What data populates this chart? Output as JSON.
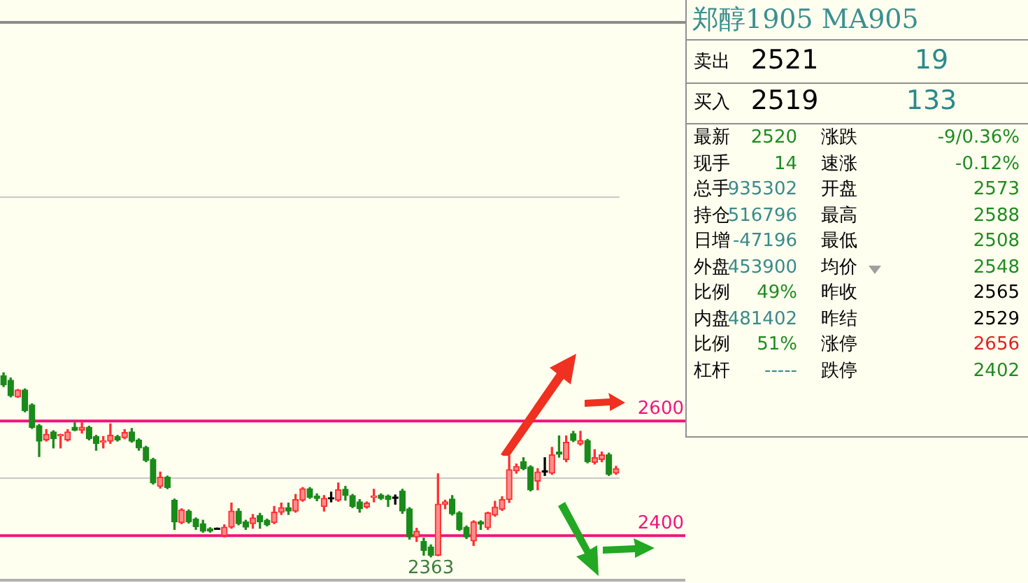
{
  "chart_data": [
    {
      "type": "candlestick",
      "categories": [
        null,
        null,
        null,
        null,
        null,
        null,
        null,
        null,
        null,
        null,
        null,
        null,
        null,
        null,
        null,
        null,
        null,
        null,
        null,
        null,
        null,
        null,
        null,
        null,
        null,
        null,
        null,
        null,
        null,
        null,
        null,
        null,
        null,
        null,
        null,
        null,
        null,
        null,
        null,
        null,
        null,
        null,
        null,
        null,
        null,
        null,
        null,
        null,
        null,
        null,
        null,
        null,
        null,
        null,
        null,
        null,
        null,
        null,
        null,
        null,
        null,
        null,
        null,
        null,
        null,
        null,
        null,
        null,
        null,
        null,
        null,
        null,
        null,
        null,
        null,
        null,
        null,
        null,
        null,
        null,
        null,
        null,
        null,
        null,
        null,
        null,
        null
      ],
      "ohlc": [
        [
          2679,
          2684,
          2660,
          2663
        ],
        [
          2671,
          2675,
          2642,
          2644
        ],
        [
          2642,
          2655,
          2641,
          2654
        ],
        [
          2654,
          2656,
          2616,
          2618
        ],
        [
          2628,
          2630,
          2587,
          2589
        ],
        [
          2592,
          2594,
          2538,
          2565
        ],
        [
          2567,
          2585,
          2565,
          2577
        ],
        [
          2581,
          2583,
          2553,
          2569
        ],
        [
          2574,
          2577,
          2553,
          2575
        ],
        [
          2567,
          2585,
          2565,
          2581
        ],
        [
          2589,
          2597,
          2583,
          2584
        ],
        [
          2584,
          2597,
          2579,
          2589
        ],
        [
          2589,
          2591,
          2567,
          2569
        ],
        [
          2573,
          2575,
          2549,
          2561
        ],
        [
          2563,
          2573,
          2553,
          2565
        ],
        [
          2565,
          2595,
          2561,
          2575
        ],
        [
          2573,
          2575,
          2565,
          2567
        ],
        [
          2571,
          2585,
          2569,
          2580
        ],
        [
          2581,
          2587,
          2563,
          2565
        ],
        [
          2567,
          2569,
          2549,
          2553
        ],
        [
          2554,
          2556,
          2529,
          2531
        ],
        [
          2533,
          2535,
          2490,
          2492
        ],
        [
          2486,
          2511,
          2483,
          2502
        ],
        [
          2502,
          2504,
          2482,
          2484
        ],
        [
          2462,
          2464,
          2411,
          2424
        ],
        [
          2423,
          2447,
          2421,
          2445
        ],
        [
          2443,
          2445,
          2422,
          2424
        ],
        [
          2429,
          2431,
          2411,
          2416
        ],
        [
          2421,
          2427,
          2406,
          2408
        ],
        [
          2412,
          2414,
          2406,
          2408
        ],
        [
          2411,
          2411,
          2411,
          2411
        ],
        [
          2400,
          2419,
          2398,
          2415
        ],
        [
          2415,
          2457,
          2413,
          2443
        ],
        [
          2443,
          2447,
          2419,
          2421
        ],
        [
          2424,
          2427,
          2411,
          2415
        ],
        [
          2421,
          2437,
          2413,
          2431
        ],
        [
          2435,
          2439,
          2413,
          2424
        ],
        [
          2427,
          2429,
          2417,
          2419
        ],
        [
          2423,
          2451,
          2421,
          2441
        ],
        [
          2441,
          2457,
          2437,
          2449
        ],
        [
          2449,
          2457,
          2437,
          2443
        ],
        [
          2443,
          2472,
          2441,
          2463
        ],
        [
          2462,
          2484,
          2460,
          2482
        ],
        [
          2482,
          2484,
          2465,
          2467
        ],
        [
          2469,
          2473,
          2461,
          2465
        ],
        [
          2451,
          2470,
          2443,
          2465
        ],
        [
          2464,
          2476,
          2459,
          2464
        ],
        [
          2462,
          2492,
          2460,
          2480
        ],
        [
          2481,
          2486,
          2462,
          2470
        ],
        [
          2470,
          2472,
          2449,
          2451
        ],
        [
          2459,
          2463,
          2441,
          2447
        ],
        [
          2450,
          2459,
          2448,
          2457
        ],
        [
          2467,
          2481,
          2459,
          2469
        ],
        [
          2471,
          2473,
          2463,
          2465
        ],
        [
          2469,
          2471,
          2451,
          2463
        ],
        [
          2465,
          2471,
          2455,
          2465
        ],
        [
          2478,
          2481,
          2439,
          2443
        ],
        [
          2447,
          2449,
          2394,
          2398
        ],
        [
          2398,
          2413,
          2390,
          2408
        ],
        [
          2390,
          2396,
          2366,
          2374
        ],
        [
          2380,
          2384,
          2363,
          2366
        ],
        [
          2366,
          2508,
          2365,
          2455
        ],
        [
          2455,
          2462,
          2447,
          2459
        ],
        [
          2464,
          2470,
          2436,
          2438
        ],
        [
          2440,
          2442,
          2409,
          2411
        ],
        [
          2415,
          2417,
          2395,
          2398
        ],
        [
          2391,
          2426,
          2383,
          2424
        ],
        [
          2424,
          2426,
          2411,
          2420
        ],
        [
          2414,
          2441,
          2411,
          2440
        ],
        [
          2436,
          2460,
          2434,
          2450
        ],
        [
          2446,
          2468,
          2444,
          2463
        ],
        [
          2463,
          2539,
          2458,
          2515
        ],
        [
          2513,
          2525,
          2509,
          2521
        ],
        [
          2529,
          2536,
          2515,
          2517
        ],
        [
          2520,
          2522,
          2478,
          2480
        ],
        [
          2495,
          2517,
          2480,
          2511
        ],
        [
          2511,
          2536,
          2505,
          2511
        ],
        [
          2509,
          2554,
          2507,
          2541
        ],
        [
          2546,
          2574,
          2537,
          2542
        ],
        [
          2533,
          2574,
          2529,
          2563
        ],
        [
          2578,
          2582,
          2564,
          2566
        ],
        [
          2560,
          2582,
          2558,
          2566
        ],
        [
          2566,
          2568,
          2527,
          2529
        ],
        [
          2528,
          2550,
          2525,
          2536
        ],
        [
          2533,
          2546,
          2529,
          2541
        ],
        [
          2541,
          2544,
          2505,
          2507
        ],
        [
          2509,
          2521,
          2507,
          2517
        ]
      ],
      "ylim": [
        2320,
        3295
      ],
      "yticks": [
        {
          "value": 2500,
          "label": null
        },
        {
          "value": 2990,
          "label": null
        }
      ],
      "grid": "y",
      "ref_lines": [
        {
          "axis": "y",
          "value": 2600,
          "label": "2600",
          "color": "#f0147a"
        },
        {
          "axis": "y",
          "value": 2400,
          "label": "2400",
          "color": "#f0147a"
        }
      ],
      "annotations": [
        {
          "text": "2363",
          "y": 2363
        }
      ]
    },
    {
      "type": "other",
      "title": "郑醇1905 MA905",
      "annotations": [
        "卖出",
        "2521",
        "19",
        "买入",
        "2519",
        "133",
        "最新",
        "2520",
        "涨跌",
        "-9/0.36%",
        "现手",
        "14",
        "速涨",
        "-0.12%",
        "总手",
        "935302",
        "开盘",
        "2573",
        "持仓",
        "516796",
        "最高",
        "2588",
        "日增",
        "-47196",
        "最低",
        "2508",
        "外盘",
        "453900",
        "均价",
        "2548",
        "比例",
        "49%",
        "昨收",
        "2565",
        "内盘",
        "481402",
        "昨结",
        "2529",
        "比例",
        "51%",
        "涨停",
        "2656",
        "杠杆",
        "-----",
        "跌停",
        "2402"
      ],
      "colors": [
        "#000000",
        "#000000",
        "#2a8a8a",
        "#000000",
        "#000000",
        "#2a8a8a",
        "#000000",
        "#1e8c1e",
        "#000000",
        "#1e8c1e",
        "#000000",
        "#1e8c1e",
        "#000000",
        "#1e8c1e",
        "#000000",
        "#3a8a8a",
        "#000000",
        "#1e8c1e",
        "#000000",
        "#3a8a8a",
        "#000000",
        "#1e8c1e",
        "#000000",
        "#3a8a8a",
        "#000000",
        "#1e8c1e",
        "#000000",
        "#3a8a8a",
        "#000000",
        "#1e8c1e",
        "#000000",
        "#1e8c1e",
        "#000000",
        "#000000",
        "#000000",
        "#3a8a8a",
        "#000000",
        "#000000",
        "#000000",
        "#1e8c1e",
        "#000000",
        "#e02020",
        "#000000",
        "#3a8a8a",
        "#000000",
        "#1e8c1e"
      ]
    }
  ]
}
